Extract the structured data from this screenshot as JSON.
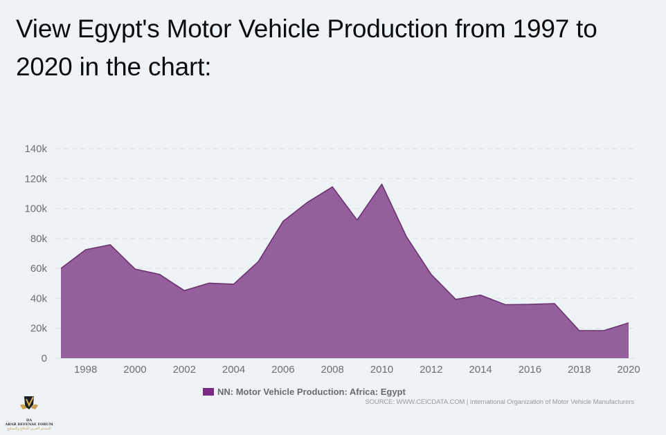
{
  "title": "View Egypt's Motor Vehicle Production from 1997 to 2020 in the chart:",
  "colors": {
    "area_fill": "#955e9c",
    "area_stroke": "#6b3470",
    "legend_swatch": "#7b2d85",
    "grid": "#d9dfe5",
    "background": "#eef3f7"
  },
  "chart_data": {
    "type": "area",
    "title": "View Egypt's Motor Vehicle Production from 1997 to 2020 in the chart:",
    "xlabel": "",
    "ylabel": "",
    "x": [
      1997,
      1998,
      1999,
      2000,
      2001,
      2002,
      2003,
      2004,
      2005,
      2006,
      2007,
      2008,
      2009,
      2010,
      2011,
      2012,
      2013,
      2014,
      2015,
      2016,
      2017,
      2018,
      2019,
      2020
    ],
    "series": [
      {
        "name": "NN: Motor Vehicle Production: Africa: Egypt",
        "values": [
          60000,
          72500,
          75800,
          59600,
          56000,
          45200,
          50200,
          49500,
          64600,
          91500,
          104300,
          114500,
          92300,
          116300,
          81200,
          56000,
          39300,
          42200,
          35800,
          36000,
          36500,
          18500,
          18500,
          23600
        ]
      }
    ],
    "ylim": [
      0,
      140000
    ],
    "yticks": [
      0,
      20000,
      40000,
      60000,
      80000,
      100000,
      120000,
      140000
    ],
    "ytick_labels": [
      "0",
      "20k",
      "40k",
      "60k",
      "80k",
      "100k",
      "120k",
      "140k"
    ],
    "xlim": [
      1997,
      2020
    ],
    "xticks": [
      1998,
      2000,
      2002,
      2004,
      2006,
      2008,
      2010,
      2012,
      2014,
      2016,
      2018,
      2020
    ],
    "xtick_labels": [
      "1998",
      "2000",
      "2002",
      "2004",
      "2006",
      "2008",
      "2010",
      "2012",
      "2014",
      "2016",
      "2018",
      "2020"
    ],
    "grid": true,
    "legend": "bottom-center"
  },
  "legend": {
    "label": "NN: Motor Vehicle Production: Africa: Egypt"
  },
  "source": "SOURCE: WWW.CEICDATA.COM | International Organization of Motor Vehicle Manufacturers",
  "watermark": {
    "name": "ARAB DEFENSE FORUM",
    "initials": "DA",
    "arabic": "المنتدى العربي للدفاع والتسليح"
  }
}
